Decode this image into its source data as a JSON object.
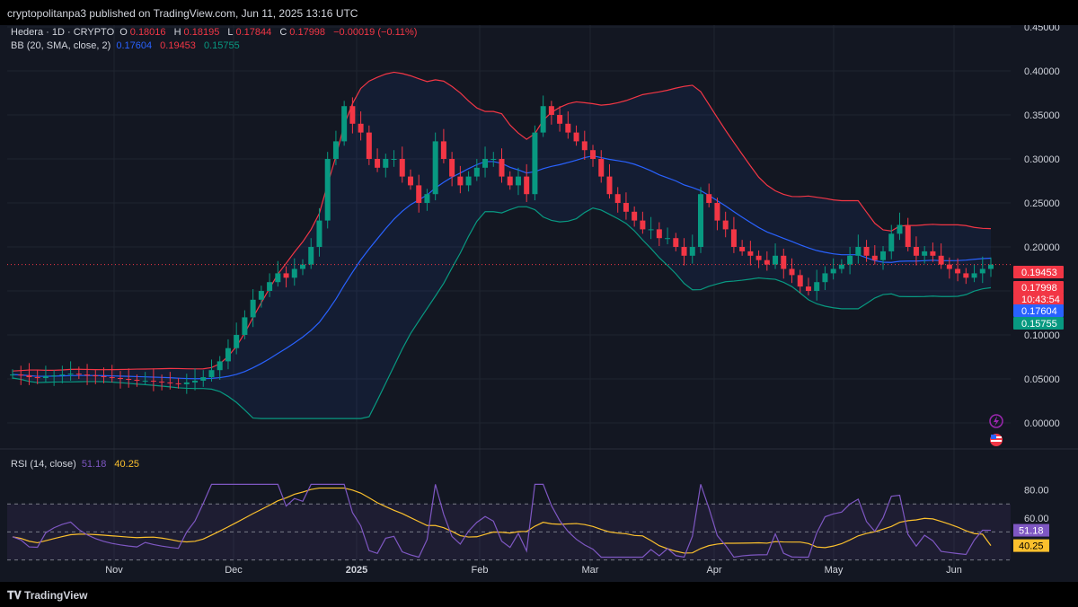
{
  "header": {
    "publisher": "cryptopolitanpa3 published on TradingView.com, Jun 11, 2025 13:16 UTC"
  },
  "legend": {
    "symbol": "Hedera · 1D · CRYPTO",
    "o_label": "O",
    "open": "0.18016",
    "h_label": "H",
    "high": "0.18195",
    "l_label": "L",
    "low": "0.17844",
    "c_label": "C",
    "close": "0.17998",
    "change": "−0.00019 (−0.11%)",
    "bb_label": "BB (20, SMA, close, 2)",
    "bb_basis": "0.17604",
    "bb_upper": "0.19453",
    "bb_lower": "0.15755"
  },
  "rsi_legend": {
    "label": "RSI (14, close)",
    "rsi": "51.18",
    "ma": "40.25"
  },
  "footer": {
    "brand": "TradingView"
  },
  "colors": {
    "bg": "#131722",
    "up": "#089981",
    "down": "#f23645",
    "bb_basis": "#2962ff",
    "bb_upper": "#f23645",
    "bb_lower": "#089981",
    "rsi": "#7e57c2",
    "rsi_ma": "#fbc02d"
  },
  "icons": [
    "lightning-icon",
    "us-flag-icon"
  ],
  "chart_data": [
    {
      "type": "candlestick",
      "title": "Hedera · 1D · CRYPTO",
      "ylim": [
        0,
        0.45
      ],
      "y_ticks": [
        "0.45000",
        "0.40000",
        "0.35000",
        "0.30000",
        "0.25000",
        "0.20000",
        "0.15000",
        "0.10000",
        "0.05000",
        "0.00000"
      ],
      "x_labels": [
        "Nov",
        "Dec",
        "2025",
        "Feb",
        "Mar",
        "Apr",
        "May",
        "Jun"
      ],
      "series": [
        {
          "name": "Hedera (approx. close)",
          "values": [
            0.055,
            0.054,
            0.052,
            0.051,
            0.053,
            0.054,
            0.055,
            0.056,
            0.055,
            0.054,
            0.053,
            0.052,
            0.051,
            0.05,
            0.049,
            0.048,
            0.048,
            0.047,
            0.046,
            0.045,
            0.044,
            0.046,
            0.048,
            0.052,
            0.06,
            0.07,
            0.085,
            0.1,
            0.12,
            0.14,
            0.15,
            0.16,
            0.17,
            0.165,
            0.175,
            0.18,
            0.2,
            0.23,
            0.3,
            0.32,
            0.36,
            0.34,
            0.33,
            0.3,
            0.29,
            0.3,
            0.3,
            0.28,
            0.27,
            0.25,
            0.26,
            0.32,
            0.3,
            0.28,
            0.27,
            0.28,
            0.29,
            0.3,
            0.3,
            0.28,
            0.27,
            0.28,
            0.26,
            0.33,
            0.36,
            0.35,
            0.34,
            0.33,
            0.32,
            0.31,
            0.3,
            0.28,
            0.26,
            0.25,
            0.24,
            0.23,
            0.22,
            0.22,
            0.21,
            0.21,
            0.2,
            0.19,
            0.2,
            0.26,
            0.25,
            0.23,
            0.22,
            0.2,
            0.195,
            0.19,
            0.185,
            0.18,
            0.19,
            0.175,
            0.168,
            0.155,
            0.15,
            0.16,
            0.17,
            0.175,
            0.18,
            0.19,
            0.2,
            0.19,
            0.185,
            0.195,
            0.215,
            0.225,
            0.2,
            0.19,
            0.195,
            0.19,
            0.18,
            0.175,
            0.17,
            0.165,
            0.17,
            0.175,
            0.18
          ]
        },
        {
          "name": "BB Upper",
          "last": 0.19453
        },
        {
          "name": "BB Basis",
          "last": 0.17604
        },
        {
          "name": "BB Lower",
          "last": 0.15755
        }
      ],
      "price_labels": [
        {
          "value": 0.19453,
          "text": "0.19453",
          "color": "#f23645"
        },
        {
          "value": 0.17998,
          "text": "0.17998",
          "color": "#f23645"
        },
        {
          "value": 0.17998,
          "text": "10:43:54",
          "color": "#f23645"
        },
        {
          "value": 0.17604,
          "text": "0.17604",
          "color": "#2962ff"
        },
        {
          "value": 0.15755,
          "text": "0.15755",
          "color": "#089981"
        }
      ]
    },
    {
      "type": "line",
      "title": "RSI (14, close)",
      "ylim": [
        30,
        90
      ],
      "y_ticks": [
        "80.00",
        "60.00"
      ],
      "bands": [
        70,
        30
      ],
      "series": [
        {
          "name": "RSI",
          "last": 51.18
        },
        {
          "name": "RSI MA",
          "last": 40.25
        }
      ],
      "value_labels": [
        {
          "value": 51.18,
          "text": "51.18",
          "color": "#7e57c2"
        },
        {
          "value": 40.25,
          "text": "40.25",
          "color": "#fbc02d"
        }
      ]
    }
  ]
}
